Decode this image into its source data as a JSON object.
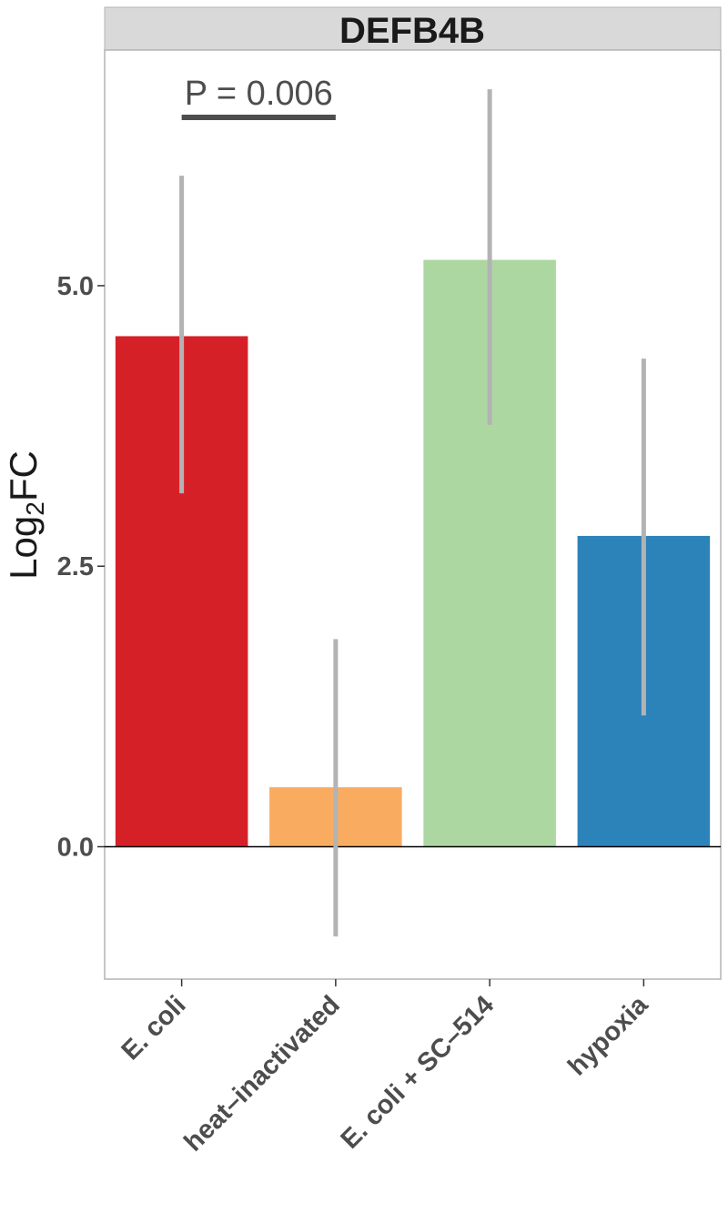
{
  "chart_data": {
    "type": "bar",
    "title": "DEFB4B",
    "ylabel_main": "Log",
    "ylabel_sub": "2",
    "ylabel_tail": "FC",
    "categories": [
      "E. coli",
      "heat–inactivated",
      "E. coli + SC–514",
      "hypoxia"
    ],
    "values": [
      4.55,
      0.53,
      5.23,
      2.77
    ],
    "error_low": [
      3.15,
      -0.8,
      3.76,
      1.17
    ],
    "error_high": [
      5.98,
      1.85,
      6.75,
      4.35
    ],
    "colors": [
      "#d62027",
      "#f9ac60",
      "#acd7a1",
      "#2b83ba"
    ],
    "error_color": "#b3b3b3",
    "ylim": [
      -1.18,
      7.1
    ],
    "yticks": [
      0.0,
      2.5,
      5.0
    ],
    "ytick_labels": [
      "0.0",
      "2.5",
      "5.0"
    ],
    "grid": false,
    "legend": "none",
    "annotation": {
      "text": "P = 0.006",
      "from_category": 0,
      "to_category": 1,
      "y": 6.5
    }
  }
}
